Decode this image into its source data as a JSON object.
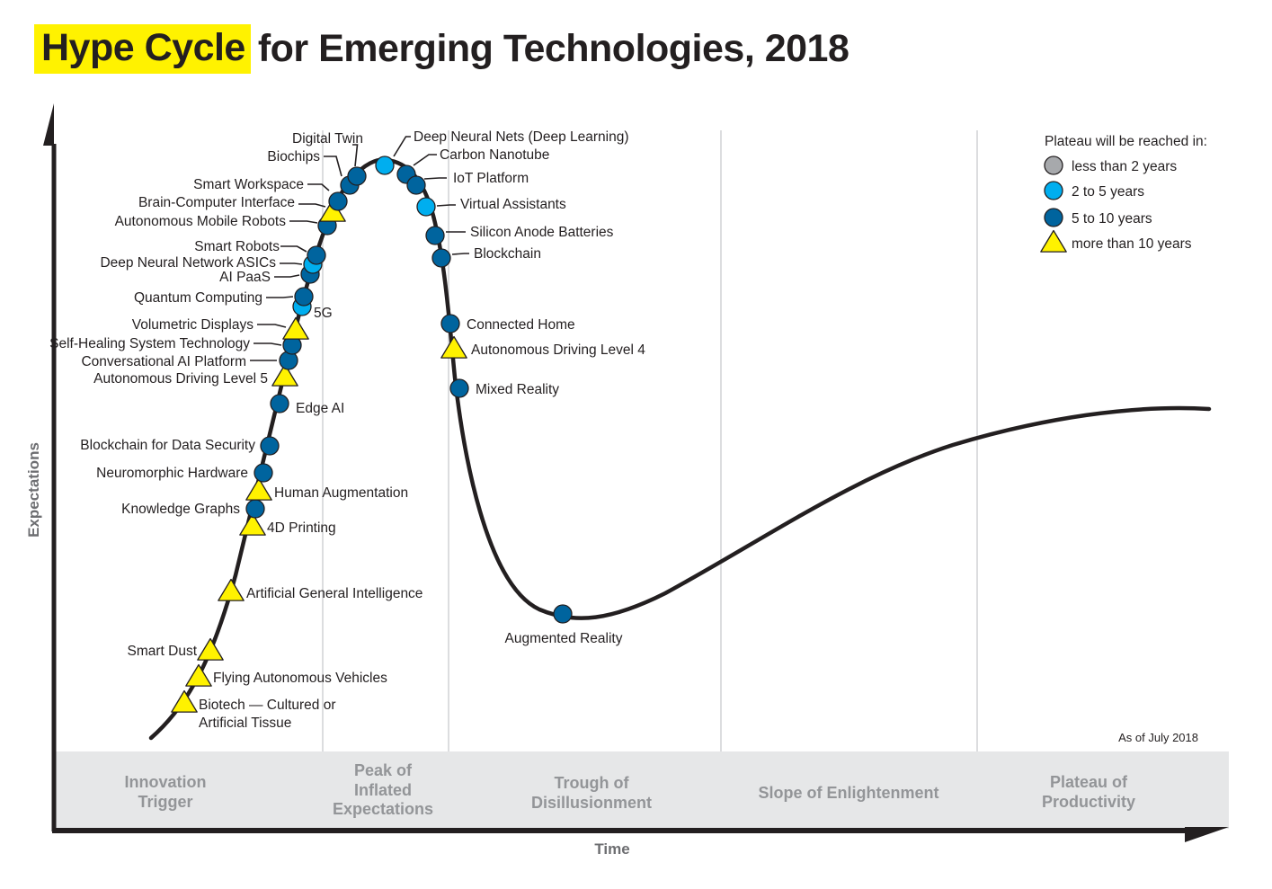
{
  "title": {
    "highlight": "Hype Cycle",
    "rest": "for Emerging Technologies, 2018"
  },
  "axes": {
    "y_label": "Expectations",
    "x_label": "Time"
  },
  "as_of": "As of July 2018",
  "phases": [
    {
      "lines": [
        "Innovation",
        "Trigger"
      ]
    },
    {
      "lines": [
        "Peak of",
        "Inflated",
        "Expectations"
      ]
    },
    {
      "lines": [
        "Trough of",
        "Disillusionment"
      ]
    },
    {
      "lines": [
        "Slope of Enlightenment"
      ]
    },
    {
      "lines": [
        "Plateau of",
        "Productivity"
      ]
    }
  ],
  "colors": {
    "highlight": "#fff200",
    "curve": "#231f20",
    "band": "#e6e7e8",
    "phase_text": "#939598",
    "lt2": "#a7a9ac",
    "2to5": "#00aeef",
    "5to10": "#00649e",
    "gt10": "#fff200"
  },
  "legend": {
    "title": "Plateau will be reached in:",
    "items": [
      {
        "key": "lt2",
        "shape": "circle",
        "label": "less than 2 years"
      },
      {
        "key": "2to5",
        "shape": "circle",
        "label": "2 to 5 years"
      },
      {
        "key": "5to10",
        "shape": "circle",
        "label": "5 to 10 years"
      },
      {
        "key": "gt10",
        "shape": "triangle",
        "label": "more than 10 years"
      }
    ]
  },
  "chart_data": {
    "type": "scatter",
    "title": "Hype Cycle for Emerging Technologies, 2018",
    "xlabel": "Time",
    "ylabel": "Expectations",
    "note": "positions expressed as fraction of time axis (0-1) and expectations (0-1)",
    "technologies": [
      {
        "name": "Biotech — Cultured or Artificial Tissue",
        "lines": [
          "Biotech — Cultured or",
          "Artificial Tissue"
        ],
        "plateau": "gt10",
        "phase": "Innovation Trigger",
        "t": 0.113,
        "e": 0.06
      },
      {
        "name": "Flying Autonomous Vehicles",
        "plateau": "gt10",
        "phase": "Innovation Trigger",
        "t": 0.124,
        "e": 0.1
      },
      {
        "name": "Smart Dust",
        "plateau": "gt10",
        "phase": "Innovation Trigger",
        "t": 0.137,
        "e": 0.145
      },
      {
        "name": "Artificial General Intelligence",
        "plateau": "gt10",
        "phase": "Innovation Trigger",
        "t": 0.155,
        "e": 0.245
      },
      {
        "name": "4D Printing",
        "plateau": "gt10",
        "phase": "Innovation Trigger",
        "t": 0.173,
        "e": 0.355
      },
      {
        "name": "Knowledge Graphs",
        "plateau": "5to10",
        "phase": "Innovation Trigger",
        "t": 0.176,
        "e": 0.385
      },
      {
        "name": "Human Augmentation",
        "plateau": "gt10",
        "phase": "Innovation Trigger",
        "t": 0.181,
        "e": 0.415
      },
      {
        "name": "Neuromorphic Hardware",
        "plateau": "5to10",
        "phase": "Innovation Trigger",
        "t": 0.185,
        "e": 0.445
      },
      {
        "name": "Blockchain for Data Security",
        "plateau": "5to10",
        "phase": "Innovation Trigger",
        "t": 0.19,
        "e": 0.49
      },
      {
        "name": "Edge AI",
        "plateau": "5to10",
        "phase": "Innovation Trigger",
        "t": 0.198,
        "e": 0.55
      },
      {
        "name": "Autonomous Driving Level 5",
        "plateau": "gt10",
        "phase": "Innovation Trigger",
        "t": 0.204,
        "e": 0.595
      },
      {
        "name": "Conversational AI Platform",
        "plateau": "5to10",
        "phase": "Innovation Trigger",
        "t": 0.207,
        "e": 0.62
      },
      {
        "name": "Self-Healing System Technology",
        "plateau": "5to10",
        "phase": "Innovation Trigger",
        "t": 0.21,
        "e": 0.645
      },
      {
        "name": "Volumetric Displays",
        "plateau": "gt10",
        "phase": "Innovation Trigger",
        "t": 0.213,
        "e": 0.67
      },
      {
        "name": "5G",
        "plateau": "2to5",
        "phase": "Innovation Trigger",
        "t": 0.218,
        "e": 0.71
      },
      {
        "name": "Quantum Computing",
        "plateau": "5to10",
        "phase": "Innovation Trigger",
        "t": 0.22,
        "e": 0.725
      },
      {
        "name": "AI PaaS",
        "plateau": "5to10",
        "phase": "Innovation Trigger",
        "t": 0.224,
        "e": 0.77
      },
      {
        "name": "Deep Neural Network ASICs",
        "plateau": "2to5",
        "phase": "Innovation Trigger",
        "t": 0.226,
        "e": 0.79
      },
      {
        "name": "Smart Robots",
        "plateau": "5to10",
        "phase": "Innovation Trigger",
        "t": 0.228,
        "e": 0.805
      },
      {
        "name": "Autonomous Mobile Robots",
        "plateau": "5to10",
        "phase": "Peak of Inflated Expectations",
        "t": 0.234,
        "e": 0.855
      },
      {
        "name": "Brain-Computer Interface",
        "plateau": "gt10",
        "phase": "Peak of Inflated Expectations",
        "t": 0.238,
        "e": 0.88
      },
      {
        "name": "Smart Workspace",
        "plateau": "5to10",
        "phase": "Peak of Inflated Expectations",
        "t": 0.243,
        "e": 0.9
      },
      {
        "name": "Biochips",
        "plateau": "5to10",
        "phase": "Peak of Inflated Expectations",
        "t": 0.252,
        "e": 0.93
      },
      {
        "name": "Digital Twin",
        "plateau": "5to10",
        "phase": "Peak of Inflated Expectations",
        "t": 0.26,
        "e": 0.945
      },
      {
        "name": "Deep Neural Nets (Deep Learning)",
        "plateau": "2to5",
        "phase": "Peak of Inflated Expectations",
        "t": 0.283,
        "e": 0.965
      },
      {
        "name": "Carbon Nanotube",
        "plateau": "5to10",
        "phase": "Peak of Inflated Expectations",
        "t": 0.302,
        "e": 0.95
      },
      {
        "name": "IoT Platform",
        "plateau": "5to10",
        "phase": "Peak of Inflated Expectations",
        "t": 0.31,
        "e": 0.935
      },
      {
        "name": "Virtual Assistants",
        "plateau": "2to5",
        "phase": "Peak of Inflated Expectations",
        "t": 0.319,
        "e": 0.89
      },
      {
        "name": "Silicon Anode Batteries",
        "plateau": "5to10",
        "phase": "Peak of Inflated Expectations",
        "t": 0.326,
        "e": 0.83
      },
      {
        "name": "Blockchain",
        "plateau": "5to10",
        "phase": "Peak of Inflated Expectations",
        "t": 0.331,
        "e": 0.795
      },
      {
        "name": "Connected Home",
        "plateau": "5to10",
        "phase": "Trough of Disillusionment",
        "t": 0.338,
        "e": 0.685
      },
      {
        "name": "Autonomous Driving Level 4",
        "plateau": "gt10",
        "phase": "Trough of Disillusionment",
        "t": 0.341,
        "e": 0.645
      },
      {
        "name": "Mixed Reality",
        "plateau": "5to10",
        "phase": "Trough of Disillusionment",
        "t": 0.346,
        "e": 0.585
      },
      {
        "name": "Augmented Reality",
        "plateau": "5to10",
        "phase": "Trough of Disillusionment",
        "t": 0.437,
        "e": 0.2
      }
    ]
  }
}
